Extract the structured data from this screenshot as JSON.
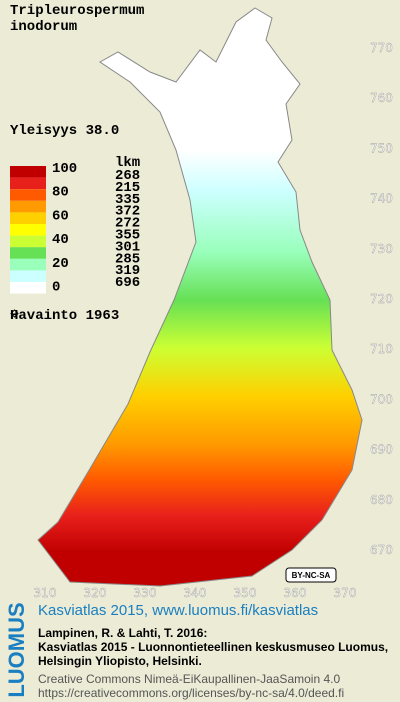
{
  "title": [
    "Tripleurospermum",
    "inodorum"
  ],
  "frequency": "Yleisyys  38.0",
  "legend": {
    "scale": [
      100,
      80,
      60,
      40,
      20,
      0
    ],
    "count_header": "lkm",
    "counts": [
      268,
      215,
      335,
      372,
      272,
      355,
      301,
      285,
      319,
      696
    ],
    "colors": [
      "#c00000",
      "#e8201c",
      "#ff5a00",
      "#ff9a00",
      "#ffd000",
      "#ffff00",
      "#ccff33",
      "#66e055",
      "#99ffbb",
      "#ccffff",
      "#ffffff"
    ]
  },
  "observation": "Havainto 1963",
  "y_ticks": [
    770,
    760,
    750,
    740,
    730,
    720,
    710,
    700,
    690,
    680,
    670
  ],
  "x_ticks": [
    310,
    320,
    330,
    340,
    350,
    360,
    370
  ],
  "license_badge": "BY-NC-SA",
  "footer": {
    "logo": "LUOMUS",
    "headline": "Kasviatlas 2015, www.luomus.fi/kasviatlas",
    "citation": [
      "Lampinen, R. & Lahti, T. 2016:",
      "Kasviatlas 2015 - Luonnontieteellinen keskusmuseo Luomus,",
      "Helsingin Yliopisto, Helsinki."
    ],
    "license": [
      "Creative Commons Nimeä-EiKaupallinen-JaaSamoin 4.0",
      "https://creativecommons.org/licenses/by-nc-sa/4.0/deed.fi"
    ]
  }
}
